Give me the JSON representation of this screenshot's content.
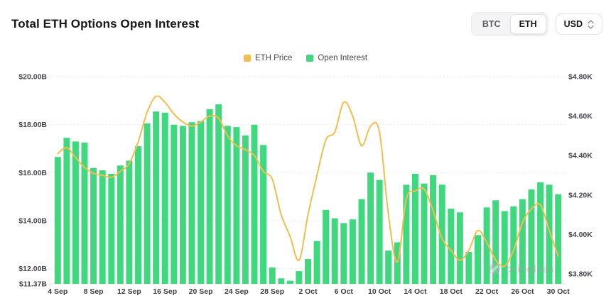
{
  "header": {
    "title": "Total ETH Options Open Interest",
    "asset_toggle": {
      "options": [
        "BTC",
        "ETH"
      ],
      "selected": "ETH"
    },
    "currency_select": {
      "value": "USD"
    }
  },
  "legend": [
    {
      "label": "ETH Price",
      "color": "#F2BE4D"
    },
    {
      "label": "Open Interest",
      "color": "#3FD87F"
    }
  ],
  "watermark": {
    "text": "coinglass"
  },
  "chart_data": {
    "type": "bar+line dual-axis",
    "title": "Total ETH Options Open Interest",
    "x_count": 57,
    "x_tick_every": 4,
    "x_tick_labels": [
      "4 Sep",
      "8 Sep",
      "12 Sep",
      "16 Sep",
      "20 Sep",
      "24 Sep",
      "28 Sep",
      "2 Oct",
      "6 Oct",
      "10 Oct",
      "14 Oct",
      "18 Oct",
      "22 Oct",
      "26 Oct",
      "30 Oct"
    ],
    "grid": {
      "horizontal": "dotted"
    },
    "legend_position": "top-center",
    "left_axis": {
      "series": "Open Interest",
      "ticks": [
        "$20.00B",
        "$18.00B",
        "$16.00B",
        "$14.00B",
        "$12.00B",
        "$11.37B"
      ],
      "tick_values": [
        20,
        18,
        16,
        14,
        12,
        11.37
      ],
      "min": 11.37,
      "max": 20
    },
    "right_axis": {
      "series": "ETH Price",
      "ticks": [
        "$4.80K",
        "$4.60K",
        "$4.40K",
        "$4.20K",
        "$4.00K",
        "$3.80K"
      ],
      "tick_values": [
        4.8,
        4.6,
        4.4,
        4.2,
        4.0,
        3.8
      ],
      "min": 3.75,
      "max": 4.8
    },
    "series": [
      {
        "name": "Open Interest",
        "type": "bar",
        "axis": "left",
        "unit": "$B",
        "color": "#3FD87F",
        "values": [
          16.65,
          17.45,
          17.3,
          17.25,
          16.2,
          16.1,
          15.95,
          16.3,
          16.5,
          17.1,
          18.05,
          18.55,
          18.5,
          18.0,
          17.95,
          18.1,
          18.15,
          18.65,
          18.85,
          17.95,
          17.9,
          17.55,
          18.0,
          17.15,
          12.05,
          11.6,
          11.5,
          11.9,
          12.4,
          13.15,
          14.45,
          14.1,
          13.9,
          14.05,
          14.9,
          16.0,
          15.7,
          12.75,
          13.1,
          15.5,
          15.95,
          15.55,
          15.9,
          15.5,
          14.5,
          14.35,
          12.7,
          13.4,
          14.55,
          14.85,
          14.4,
          14.6,
          14.9,
          15.3,
          15.6,
          15.5,
          15.1
        ]
      },
      {
        "name": "ETH Price",
        "type": "line",
        "axis": "right",
        "unit": "$K",
        "color": "#F2BE4D",
        "values": [
          4.41,
          4.44,
          4.39,
          4.34,
          4.31,
          4.3,
          4.29,
          4.32,
          4.36,
          4.47,
          4.62,
          4.7,
          4.67,
          4.61,
          4.57,
          4.55,
          4.57,
          4.6,
          4.59,
          4.5,
          4.45,
          4.43,
          4.4,
          4.32,
          4.28,
          4.1,
          3.99,
          3.87,
          4.1,
          4.3,
          4.48,
          4.52,
          4.67,
          4.6,
          4.45,
          4.55,
          4.52,
          4.1,
          3.86,
          4.18,
          4.22,
          4.23,
          4.12,
          3.98,
          3.92,
          3.87,
          3.92,
          4.02,
          3.96,
          3.87,
          3.84,
          3.92,
          4.06,
          4.13,
          4.15,
          4.02,
          3.89
        ]
      }
    ]
  }
}
